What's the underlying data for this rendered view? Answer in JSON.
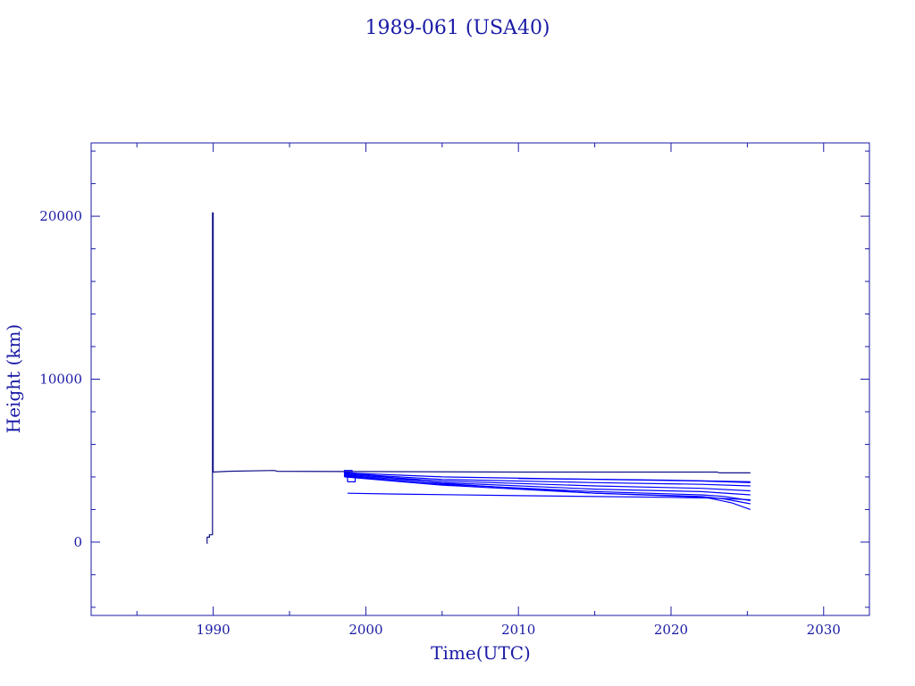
{
  "chart_data": {
    "type": "line",
    "title": "1989-061 (USA40)",
    "xlabel": "Time(UTC)",
    "ylabel": "Height (km)",
    "xlim": [
      1982,
      2033
    ],
    "ylim": [
      -4500,
      24500
    ],
    "xticks": [
      1990,
      2000,
      2010,
      2020,
      2030
    ],
    "xtick_labels": [
      "1990",
      "2000",
      "2010",
      "2020",
      "2030"
    ],
    "yticks": [
      0,
      10000,
      20000
    ],
    "ytick_labels": [
      "0",
      "10000",
      "20000"
    ],
    "grid": false,
    "colors": {
      "axes": "#1a1aa6",
      "series": "#0000ff"
    },
    "series": [
      {
        "x": [
          1989.6,
          1989.6,
          1989.75,
          1989.75,
          1989.95,
          1989.95,
          1990.0,
          1990.0,
          1991.0,
          1994.0,
          1994.2,
          1999.0,
          2010.0,
          2023.0,
          2023.2,
          2025.2
        ],
        "y": [
          -100,
          300,
          300,
          450,
          450,
          20200,
          20200,
          4300,
          4350,
          4400,
          4350,
          4330,
          4300,
          4300,
          4250,
          4250
        ]
      },
      {
        "x": [
          1998.6,
          2005.0,
          2015.0,
          2022.0,
          2025.2
        ],
        "y": [
          4250,
          4000,
          3850,
          3750,
          3650
        ]
      },
      {
        "x": [
          1998.6,
          2005.0,
          2015.0,
          2022.0,
          2025.2
        ],
        "y": [
          4200,
          3850,
          3650,
          3550,
          3450
        ]
      },
      {
        "x": [
          1998.6,
          2005.0,
          2015.0,
          2022.0,
          2025.2
        ],
        "y": [
          4150,
          3750,
          3450,
          3300,
          3150
        ]
      },
      {
        "x": [
          1998.6,
          2005.0,
          2015.0,
          2022.0,
          2025.2
        ],
        "y": [
          4100,
          3650,
          3250,
          3100,
          2900
        ]
      },
      {
        "x": [
          1998.6,
          2005.0,
          2015.0,
          2022.0,
          2023.5,
          2025.2
        ],
        "y": [
          4050,
          3550,
          3100,
          2900,
          2800,
          2550
        ]
      },
      {
        "x": [
          1998.6,
          2005.0,
          2015.0,
          2022.0,
          2023.5,
          2025.2
        ],
        "y": [
          4000,
          3500,
          3000,
          2800,
          2650,
          2350
        ]
      },
      {
        "x": [
          1998.6,
          2005.0,
          2015.0,
          2021.0,
          2022.5,
          2024.0,
          2025.2
        ],
        "y": [
          4300,
          3600,
          3000,
          2800,
          2700,
          2400,
          2000
        ]
      },
      {
        "x": [
          1998.8,
          2002.0,
          2010.0,
          2020.0,
          2023.0,
          2025.2
        ],
        "y": [
          3000,
          2950,
          2850,
          2750,
          2700,
          2600
        ]
      },
      {
        "x": [
          2010.0,
          2016.0,
          2020.0,
          2022.5,
          2025.2
        ],
        "y": [
          3900,
          3850,
          3800,
          3750,
          3700
        ]
      },
      {
        "x": [
          1998.6,
          1998.6,
          1999.1,
          1999.1,
          1998.6
        ],
        "y": [
          4000,
          4400,
          4400,
          4000,
          4000
        ]
      },
      {
        "x": [
          1998.8,
          1998.8,
          1999.3,
          1999.3,
          1998.8
        ],
        "y": [
          3700,
          4050,
          4050,
          3700,
          3700
        ]
      }
    ]
  }
}
